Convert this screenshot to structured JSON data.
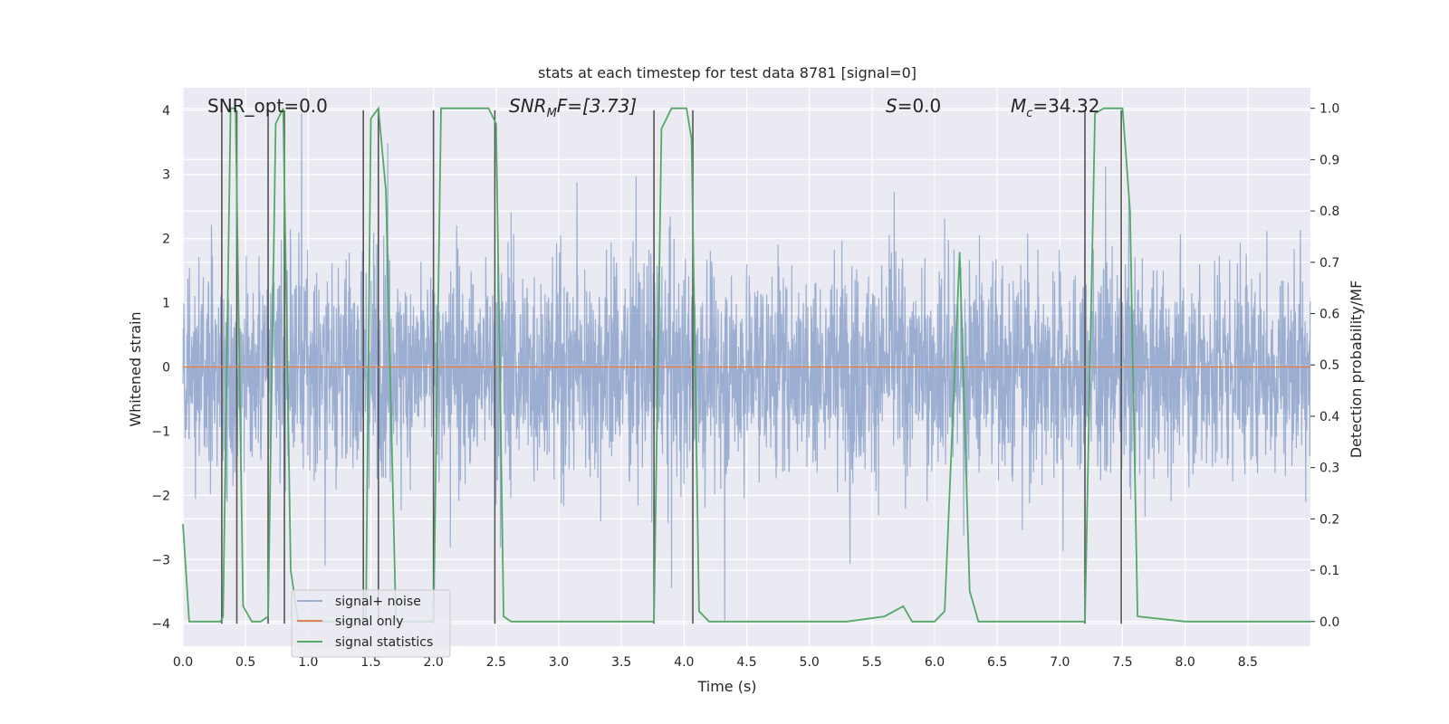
{
  "chart_data": {
    "type": "line",
    "title": "stats at each timestep for test data 8781 [signal=0]",
    "xlabel": "Time (s)",
    "ylabel": "Whitened strain",
    "y2label": "Detection probability/MF",
    "xlim": [
      0,
      9.0
    ],
    "ylim": [
      -4.35,
      4.35
    ],
    "y2lim": [
      -0.048,
      1.04
    ],
    "xticks": [
      "0.0",
      "0.5",
      "1.0",
      "1.5",
      "2.0",
      "2.5",
      "3.0",
      "3.5",
      "4.0",
      "4.5",
      "5.0",
      "5.5",
      "6.0",
      "6.5",
      "7.0",
      "7.5",
      "8.0",
      "8.5"
    ],
    "yticks": [
      "4",
      "3",
      "2",
      "1",
      "0",
      "−1",
      "−2",
      "−3",
      "−4"
    ],
    "y2ticks": [
      "1.0",
      "0.9",
      "0.8",
      "0.7",
      "0.6",
      "0.5",
      "0.4",
      "0.3",
      "0.2",
      "0.1",
      "0.0"
    ],
    "grid": true,
    "legend_position": "lower-left",
    "annotations": {
      "snr_opt": "SNR_opt=0.0",
      "snr_mf_base": "SNR",
      "snr_mf_sub": "M",
      "snr_mf_rest": "F=[3.73]",
      "s_base": "S",
      "s_rest": "=0.0",
      "mc_base": "M",
      "mc_sub": "c",
      "mc_rest": "=34.32"
    },
    "series": [
      {
        "name": "signal+ noise",
        "color": "#4c72b0",
        "note_amplitude": "noise band roughly between -2.5 and 2.5 with spikes up to about 3.9 and down to about -3.9"
      },
      {
        "name": "signal only",
        "color": "#dd8452",
        "x": [
          0.0,
          9.0
        ],
        "y": [
          0.0,
          0.0
        ]
      },
      {
        "name": "signal statistics",
        "color": "#55a868",
        "x": [
          0.0,
          0.05,
          0.2,
          0.3,
          0.32,
          0.38,
          0.42,
          0.48,
          0.55,
          0.62,
          0.68,
          0.74,
          0.8,
          0.86,
          0.92,
          1.0,
          1.2,
          1.44,
          1.46,
          1.5,
          1.56,
          1.62,
          1.7,
          1.8,
          2.0,
          2.06,
          2.2,
          2.3,
          2.44,
          2.5,
          2.56,
          2.62,
          3.0,
          3.5,
          3.76,
          3.82,
          3.9,
          4.02,
          4.06,
          4.12,
          4.2,
          5.0,
          5.3,
          5.6,
          5.75,
          5.82,
          6.0,
          6.08,
          6.2,
          6.28,
          6.35,
          7.0,
          7.2,
          7.28,
          7.35,
          7.5,
          7.56,
          7.62,
          8.0,
          9.0
        ],
        "y": [
          0.19,
          0.0,
          0.0,
          0.0,
          0.01,
          1.0,
          1.0,
          0.03,
          0.0,
          0.0,
          0.01,
          0.97,
          1.0,
          0.1,
          0.0,
          0.0,
          0.0,
          0.0,
          0.0,
          0.98,
          1.0,
          0.84,
          0.0,
          0.0,
          0.0,
          1.0,
          1.0,
          1.0,
          1.0,
          0.97,
          0.01,
          0.0,
          0.0,
          0.0,
          0.0,
          0.96,
          1.0,
          1.0,
          0.94,
          0.02,
          0.0,
          0.0,
          0.0,
          0.01,
          0.03,
          0.0,
          0.0,
          0.02,
          0.72,
          0.06,
          0.0,
          0.0,
          0.0,
          0.99,
          1.0,
          1.0,
          0.8,
          0.01,
          0.0,
          0.0
        ]
      }
    ],
    "markers": {
      "color": "#555555",
      "x": [
        0.31,
        0.43,
        0.68,
        0.81,
        1.44,
        1.56,
        2.0,
        2.49,
        3.76,
        4.07,
        7.2,
        7.49
      ],
      "y_top": 4.0,
      "y_bottom": -4.0
    }
  },
  "legend": {
    "items": [
      {
        "label": "signal+ noise",
        "color": "#4c72b0"
      },
      {
        "label": "signal only",
        "color": "#dd8452"
      },
      {
        "label": "signal statistics",
        "color": "#55a868"
      }
    ]
  }
}
